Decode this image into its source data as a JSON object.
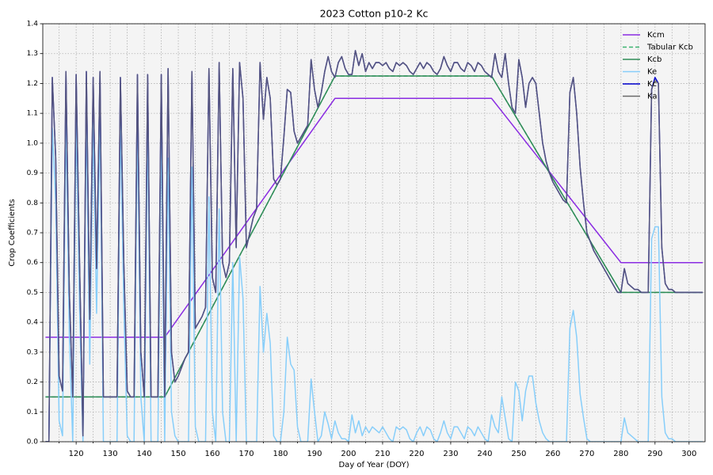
{
  "chart_data": {
    "type": "line",
    "title": "2023 Cotton p10-2 Kc",
    "xlabel": "Day of Year (DOY)",
    "ylabel": "Crop Coefficients",
    "xlim": [
      110.2,
      304.7
    ],
    "ylim": [
      0,
      1.4
    ],
    "xticks": [
      120,
      130,
      140,
      150,
      160,
      170,
      180,
      190,
      200,
      210,
      220,
      230,
      240,
      250,
      260,
      270,
      280,
      290,
      300
    ],
    "xminorticks": [
      115,
      125,
      135,
      145,
      155,
      165,
      175,
      185,
      195,
      205,
      215,
      225,
      235,
      245,
      255,
      265,
      275,
      285,
      295
    ],
    "yticks": [
      {
        "value": 0,
        "label": "0.0"
      },
      0.1,
      0.2,
      0.3,
      0.4,
      0.5,
      0.6,
      0.7,
      0.8,
      0.9,
      {
        "value": 1,
        "label": "1.0"
      },
      1.1,
      1.2,
      1.3,
      1.4
    ],
    "grid": true,
    "legend": "upper right",
    "x": [
      111,
      112,
      113,
      114,
      115,
      116,
      117,
      118,
      119,
      120,
      121,
      122,
      123,
      124,
      125,
      126,
      127,
      128,
      129,
      130,
      131,
      132,
      133,
      134,
      135,
      136,
      137,
      138,
      139,
      140,
      141,
      142,
      143,
      144,
      145,
      146,
      147,
      148,
      149,
      150,
      151,
      152,
      153,
      154,
      155,
      156,
      157,
      158,
      159,
      160,
      161,
      162,
      163,
      164,
      165,
      166,
      167,
      168,
      169,
      170,
      171,
      172,
      173,
      174,
      175,
      176,
      177,
      178,
      179,
      180,
      181,
      182,
      183,
      184,
      185,
      186,
      187,
      188,
      189,
      190,
      191,
      192,
      193,
      194,
      195,
      196,
      197,
      198,
      199,
      200,
      201,
      202,
      203,
      204,
      205,
      206,
      207,
      208,
      209,
      210,
      211,
      212,
      213,
      214,
      215,
      216,
      217,
      218,
      219,
      220,
      221,
      222,
      223,
      224,
      225,
      226,
      227,
      228,
      229,
      230,
      231,
      232,
      233,
      234,
      235,
      236,
      237,
      238,
      239,
      240,
      241,
      242,
      243,
      244,
      245,
      246,
      247,
      248,
      249,
      250,
      251,
      252,
      253,
      254,
      255,
      256,
      257,
      258,
      259,
      260,
      261,
      262,
      263,
      264,
      265,
      266,
      267,
      268,
      269,
      270,
      271,
      272,
      273,
      274,
      275,
      276,
      277,
      278,
      279,
      280,
      281,
      282,
      283,
      284,
      285,
      286,
      287,
      288,
      289,
      290,
      291,
      292,
      293,
      294,
      295,
      296,
      297,
      298,
      299,
      300,
      301,
      302,
      303,
      304
    ],
    "series": [
      {
        "name": "Kcm",
        "color": "#8a2be2",
        "linestyle": "solid",
        "x": [
          111,
          146,
          196,
          242,
          280,
          304
        ],
        "values": [
          0.35,
          0.35,
          1.15,
          1.15,
          0.6,
          0.6
        ]
      },
      {
        "name": "Tabular Kcb",
        "color": "#3cb371",
        "linestyle": "dashed",
        "x": [
          111,
          146,
          196,
          242,
          280,
          304
        ],
        "values": [
          0.15,
          0.15,
          1.225,
          1.225,
          0.5,
          0.5
        ]
      },
      {
        "name": "Kcb",
        "color": "#2e8b57",
        "linestyle": "solid",
        "x": [
          111,
          146,
          196,
          242,
          280,
          304
        ],
        "values": [
          0.15,
          0.15,
          1.225,
          1.225,
          0.5,
          0.5
        ]
      },
      {
        "name": "Ke",
        "color": "#87cefa",
        "linestyle": "solid",
        "values": [
          0,
          0,
          1.05,
          0.8,
          0.07,
          0.02,
          1.09,
          0.35,
          0,
          1.08,
          0.45,
          0,
          1.09,
          0.26,
          1.07,
          0.43,
          1.09,
          0,
          0,
          0,
          0,
          0,
          1.07,
          0.45,
          0.02,
          0,
          0,
          1.08,
          0.15,
          0,
          1.08,
          0,
          0,
          0,
          1.08,
          0,
          0.95,
          0.1,
          0.02,
          0,
          0,
          0,
          0,
          0.92,
          0.05,
          0,
          0,
          0,
          0.82,
          0.1,
          0,
          0.78,
          0.1,
          0,
          0,
          0.6,
          0,
          0.62,
          0.48,
          0,
          0,
          0,
          0,
          0.52,
          0.3,
          0.43,
          0.33,
          0.02,
          0,
          0,
          0.1,
          0.35,
          0.26,
          0.24,
          0.05,
          0,
          0,
          0,
          0.21,
          0.1,
          0,
          0.02,
          0.1,
          0.06,
          0.01,
          0.07,
          0.03,
          0.01,
          0.01,
          0,
          0.09,
          0.03,
          0.07,
          0.02,
          0.05,
          0.03,
          0.05,
          0.04,
          0.03,
          0.05,
          0.03,
          0.01,
          0,
          0.05,
          0.04,
          0.05,
          0.04,
          0.01,
          0,
          0.03,
          0.05,
          0.02,
          0.05,
          0.04,
          0.01,
          0,
          0.03,
          0.07,
          0.03,
          0.01,
          0.05,
          0.05,
          0.03,
          0.01,
          0.05,
          0.04,
          0.02,
          0.05,
          0.03,
          0.01,
          0,
          0.09,
          0.05,
          0.03,
          0.15,
          0.08,
          0.01,
          0,
          0.2,
          0.17,
          0.07,
          0.17,
          0.22,
          0.22,
          0.13,
          0.07,
          0.03,
          0.01,
          0,
          0,
          0,
          0,
          0,
          0,
          0.38,
          0.44,
          0.35,
          0.16,
          0.08,
          0.01,
          0,
          0,
          0,
          0,
          0,
          0,
          0,
          0,
          0,
          0,
          0.08,
          0.03,
          0.02,
          0.01,
          0,
          0,
          0,
          0,
          0.68,
          0.72,
          0.72,
          0.15,
          0.03,
          0.01,
          0.01,
          0,
          0,
          0,
          0,
          0,
          0,
          0,
          0,
          0
        ]
      },
      {
        "name": "Kc",
        "color": "#0000cd",
        "linestyle": "solid",
        "values": [
          0,
          0,
          1.22,
          0.95,
          0.22,
          0.17,
          1.24,
          0.5,
          0.15,
          1.23,
          0.6,
          0.02,
          1.24,
          0.41,
          1.22,
          0.58,
          1.24,
          0.15,
          0.15,
          0.15,
          0.15,
          0.15,
          1.22,
          0.6,
          0.17,
          0.15,
          0.15,
          1.23,
          0.3,
          0.15,
          1.23,
          0.15,
          0.15,
          0.15,
          1.23,
          0.15,
          1.25,
          0.3,
          0.2,
          0.22,
          0.25,
          0.28,
          0.3,
          1.24,
          0.38,
          0.4,
          0.42,
          0.45,
          1.25,
          0.55,
          0.5,
          1.27,
          0.6,
          0.55,
          0.6,
          1.25,
          0.65,
          1.27,
          1.15,
          0.65,
          0.7,
          0.75,
          0.78,
          1.27,
          1.08,
          1.22,
          1.15,
          0.88,
          0.86,
          0.88,
          1.02,
          1.18,
          1.17,
          1.04,
          1.0,
          1.02,
          1.04,
          1.06,
          1.28,
          1.18,
          1.12,
          1.17,
          1.24,
          1.29,
          1.24,
          1.22,
          1.27,
          1.29,
          1.25,
          1.23,
          1.23,
          1.31,
          1.26,
          1.3,
          1.24,
          1.27,
          1.25,
          1.27,
          1.27,
          1.26,
          1.27,
          1.25,
          1.24,
          1.27,
          1.26,
          1.27,
          1.26,
          1.24,
          1.23,
          1.25,
          1.27,
          1.25,
          1.27,
          1.26,
          1.24,
          1.23,
          1.25,
          1.29,
          1.26,
          1.24,
          1.27,
          1.27,
          1.25,
          1.24,
          1.27,
          1.26,
          1.24,
          1.27,
          1.26,
          1.24,
          1.23,
          1.22,
          1.3,
          1.24,
          1.22,
          1.3,
          1.2,
          1.12,
          1.1,
          1.28,
          1.22,
          1.12,
          1.2,
          1.22,
          1.2,
          1.1,
          1.0,
          0.94,
          0.9,
          0.87,
          0.85,
          0.83,
          0.81,
          0.8,
          1.17,
          1.22,
          1.1,
          0.92,
          0.8,
          0.7,
          0.67,
          0.64,
          0.62,
          0.6,
          0.58,
          0.56,
          0.54,
          0.52,
          0.5,
          0.5,
          0.58,
          0.53,
          0.52,
          0.51,
          0.51,
          0.5,
          0.5,
          0.5,
          1.18,
          1.22,
          1.2,
          0.65,
          0.53,
          0.51,
          0.51,
          0.5,
          0.5,
          0.5,
          0.5,
          0.5,
          0.5,
          0.5,
          0.5,
          0.5
        ]
      },
      {
        "name": "Ka",
        "color": "#696969",
        "linestyle": "solid",
        "values": [
          0,
          0,
          1.22,
          0.95,
          0.22,
          0.17,
          1.24,
          0.5,
          0.15,
          1.23,
          0.6,
          0.02,
          1.24,
          0.41,
          1.22,
          0.58,
          1.24,
          0.15,
          0.15,
          0.15,
          0.15,
          0.15,
          1.22,
          0.6,
          0.17,
          0.15,
          0.15,
          1.23,
          0.3,
          0.15,
          1.23,
          0.15,
          0.15,
          0.15,
          1.23,
          0.15,
          1.25,
          0.3,
          0.2,
          0.22,
          0.25,
          0.28,
          0.3,
          1.24,
          0.38,
          0.4,
          0.42,
          0.45,
          1.25,
          0.55,
          0.5,
          1.27,
          0.6,
          0.55,
          0.6,
          1.25,
          0.65,
          1.27,
          1.15,
          0.65,
          0.7,
          0.75,
          0.78,
          1.27,
          1.08,
          1.22,
          1.15,
          0.88,
          0.86,
          0.88,
          1.02,
          1.18,
          1.17,
          1.04,
          1.0,
          1.02,
          1.04,
          1.06,
          1.28,
          1.18,
          1.12,
          1.17,
          1.24,
          1.29,
          1.24,
          1.22,
          1.27,
          1.29,
          1.25,
          1.23,
          1.23,
          1.31,
          1.26,
          1.3,
          1.24,
          1.27,
          1.25,
          1.27,
          1.27,
          1.26,
          1.27,
          1.25,
          1.24,
          1.27,
          1.26,
          1.27,
          1.26,
          1.24,
          1.23,
          1.25,
          1.27,
          1.25,
          1.27,
          1.26,
          1.24,
          1.23,
          1.25,
          1.29,
          1.26,
          1.24,
          1.27,
          1.27,
          1.25,
          1.24,
          1.27,
          1.26,
          1.24,
          1.27,
          1.26,
          1.24,
          1.23,
          1.22,
          1.3,
          1.24,
          1.22,
          1.3,
          1.2,
          1.12,
          1.1,
          1.28,
          1.22,
          1.12,
          1.2,
          1.22,
          1.2,
          1.1,
          1.0,
          0.94,
          0.9,
          0.87,
          0.85,
          0.83,
          0.81,
          0.8,
          1.17,
          1.22,
          1.1,
          0.92,
          0.8,
          0.7,
          0.67,
          0.64,
          0.62,
          0.6,
          0.58,
          0.56,
          0.54,
          0.52,
          0.5,
          0.5,
          0.58,
          0.53,
          0.52,
          0.51,
          0.51,
          0.5,
          0.5,
          0.5,
          1.18,
          1.21,
          1.2,
          0.65,
          0.53,
          0.51,
          0.51,
          0.5,
          0.5,
          0.5,
          0.5,
          0.5,
          0.5,
          0.5,
          0.5,
          0.5
        ]
      }
    ]
  }
}
